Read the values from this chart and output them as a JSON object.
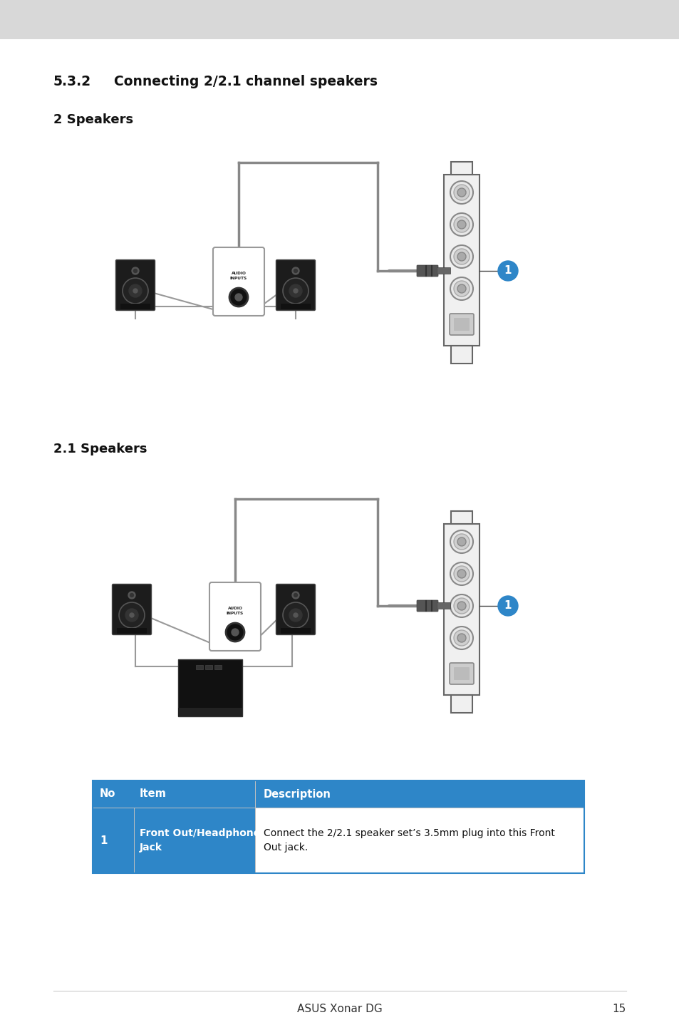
{
  "bg_color": "#ffffff",
  "page_bg_top": "#d8d8d8",
  "title_section": "5.3.2",
  "title_tab": "        Connecting 2/2.1 channel speakers",
  "subtitle1": "2 Speakers",
  "subtitle2": "2.1 Speakers",
  "table_header_bg": "#2e86c8",
  "table_header_color": "#ffffff",
  "table_col1_header": "No",
  "table_col2_header": "Item",
  "table_col3_header": "Description",
  "table_row1_no": "1",
  "table_row1_item_bold": "Front Out/Headphone\nJack",
  "table_row1_desc": "Connect the 2/2.1 speaker set’s 3.5mm plug into this Front\nOut jack.",
  "footer_text": "ASUS Xonar DG",
  "footer_page": "15",
  "blue_badge_color": "#2e86c8",
  "cable_color": "#888888",
  "cable_lw": 3,
  "speaker_dark": "#1a1a1a",
  "speaker_mid": "#333333",
  "card_color": "#f0f0f0",
  "card_edge": "#555555",
  "jack_outer": "#aaaaaa",
  "jack_inner": "#888888",
  "plug_color": "#666666"
}
